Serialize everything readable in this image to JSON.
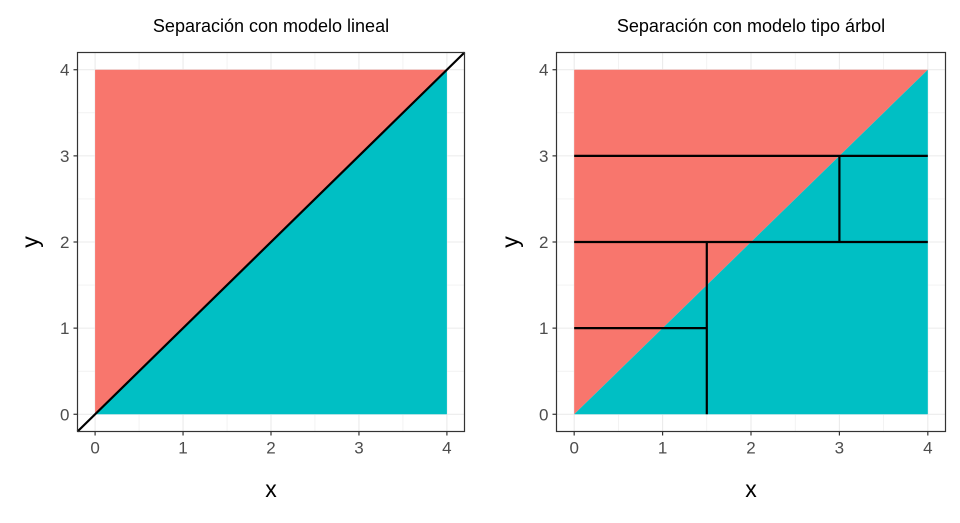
{
  "chart_data": [
    {
      "type": "area",
      "title": "Separación con modelo lineal",
      "xlabel": "x",
      "ylabel": "y",
      "xlim": [
        -0.2,
        4.2
      ],
      "ylim": [
        -0.2,
        4.2
      ],
      "xticks": [
        "0",
        "1",
        "2",
        "3",
        "4"
      ],
      "yticks": [
        "0",
        "1",
        "2",
        "3",
        "4"
      ],
      "grid": true,
      "regions": [
        {
          "polygon": [
            [
              0,
              0
            ],
            [
              0,
              4
            ],
            [
              4,
              4
            ]
          ],
          "color": "#F8766D"
        },
        {
          "polygon": [
            [
              0,
              0
            ],
            [
              4,
              0
            ],
            [
              4,
              4
            ]
          ],
          "color": "#00BFC4"
        }
      ],
      "lines": [
        {
          "x": [
            -0.2,
            4.2
          ],
          "y": [
            -0.2,
            4.2
          ],
          "color": "#000000"
        }
      ]
    },
    {
      "type": "area",
      "title": "Separación con modelo tipo árbol",
      "xlabel": "x",
      "ylabel": "y",
      "xlim": [
        -0.2,
        4.2
      ],
      "ylim": [
        -0.2,
        4.2
      ],
      "xticks": [
        "0",
        "1",
        "2",
        "3",
        "4"
      ],
      "yticks": [
        "0",
        "1",
        "2",
        "3",
        "4"
      ],
      "grid": true,
      "regions": [
        {
          "polygon": [
            [
              0,
              0
            ],
            [
              0,
              4
            ],
            [
              4,
              4
            ]
          ],
          "color": "#F8766D"
        },
        {
          "polygon": [
            [
              0,
              0
            ],
            [
              4,
              0
            ],
            [
              4,
              4
            ]
          ],
          "color": "#00BFC4"
        }
      ],
      "lines": [
        {
          "x": [
            0,
            4
          ],
          "y": [
            3,
            3
          ],
          "color": "#000000"
        },
        {
          "x": [
            0,
            4
          ],
          "y": [
            2,
            2
          ],
          "color": "#000000"
        },
        {
          "x": [
            0,
            1.5
          ],
          "y": [
            1,
            1
          ],
          "color": "#000000"
        },
        {
          "x": [
            1.5,
            1.5
          ],
          "y": [
            0,
            2
          ],
          "color": "#000000"
        },
        {
          "x": [
            3,
            3
          ],
          "y": [
            2,
            3
          ],
          "color": "#000000"
        }
      ]
    }
  ]
}
